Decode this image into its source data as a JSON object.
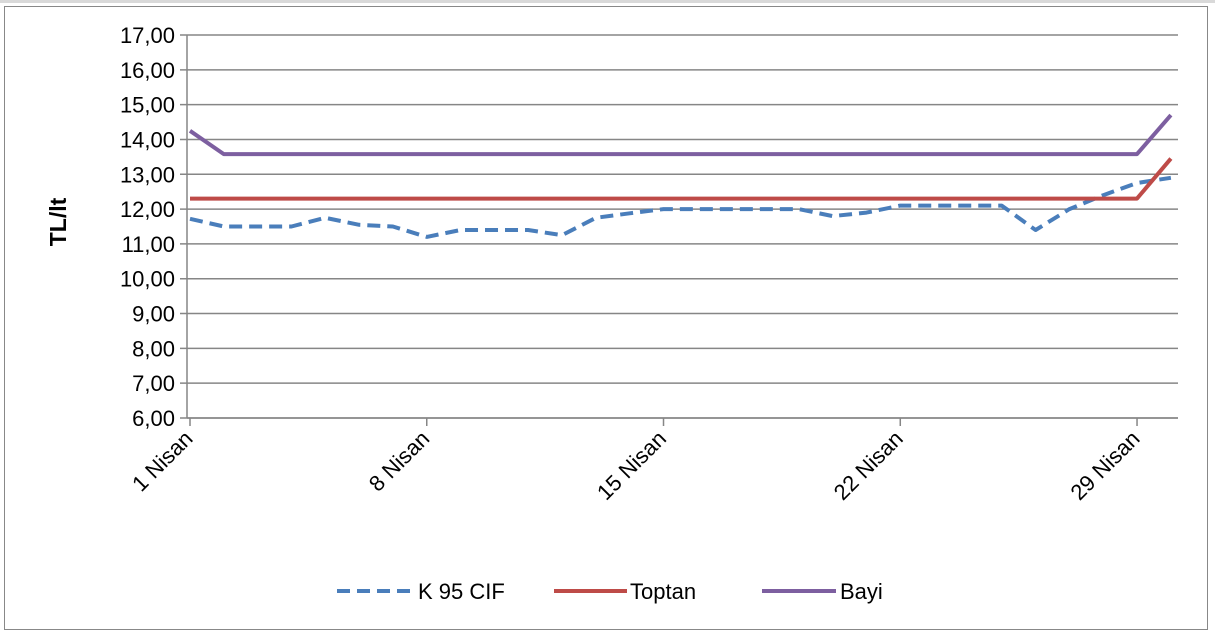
{
  "chart_data": {
    "type": "line",
    "title": "",
    "xlabel": "",
    "ylabel": "TL/lt",
    "ylim": [
      6,
      17
    ],
    "yticks": [
      "6,00",
      "7,00",
      "8,00",
      "9,00",
      "10,00",
      "11,00",
      "12,00",
      "13,00",
      "14,00",
      "15,00",
      "16,00",
      "17,00"
    ],
    "xticks": [
      {
        "day": 1,
        "label": "1 Nisan"
      },
      {
        "day": 8,
        "label": "8 Nisan"
      },
      {
        "day": 15,
        "label": "15 Nisan"
      },
      {
        "day": 22,
        "label": "22 Nisan"
      },
      {
        "day": 29,
        "label": "29 Nisan"
      }
    ],
    "x": [
      1,
      2,
      3,
      4,
      5,
      6,
      7,
      8,
      9,
      10,
      11,
      12,
      13,
      14,
      15,
      16,
      17,
      18,
      19,
      20,
      21,
      22,
      23,
      24,
      25,
      26,
      27,
      28,
      29,
      30
    ],
    "grid": true,
    "legend_position": "bottom",
    "series": [
      {
        "name": "K 95 CIF",
        "color": "#4a7ebb",
        "style": "dashed",
        "values": [
          11.72,
          11.5,
          11.5,
          11.5,
          11.75,
          11.55,
          11.5,
          11.2,
          11.4,
          11.4,
          11.4,
          11.25,
          11.75,
          11.88,
          12.0,
          12.0,
          12.0,
          12.0,
          12.0,
          11.8,
          11.9,
          12.1,
          12.1,
          12.1,
          12.1,
          11.4,
          12.0,
          12.4,
          12.75,
          12.9
        ]
      },
      {
        "name": "Toptan",
        "color": "#be4b48",
        "style": "solid",
        "values": [
          12.3,
          12.3,
          12.3,
          12.3,
          12.3,
          12.3,
          12.3,
          12.3,
          12.3,
          12.3,
          12.3,
          12.3,
          12.3,
          12.3,
          12.3,
          12.3,
          12.3,
          12.3,
          12.3,
          12.3,
          12.3,
          12.3,
          12.3,
          12.3,
          12.3,
          12.3,
          12.3,
          12.3,
          12.3,
          13.45
        ]
      },
      {
        "name": "Bayi",
        "color": "#7d5fa0",
        "style": "solid",
        "values": [
          14.25,
          13.58,
          13.58,
          13.58,
          13.58,
          13.58,
          13.58,
          13.58,
          13.58,
          13.58,
          13.58,
          13.58,
          13.58,
          13.58,
          13.58,
          13.58,
          13.58,
          13.58,
          13.58,
          13.58,
          13.58,
          13.58,
          13.58,
          13.58,
          13.58,
          13.58,
          13.58,
          13.58,
          13.58,
          14.7
        ]
      }
    ]
  }
}
